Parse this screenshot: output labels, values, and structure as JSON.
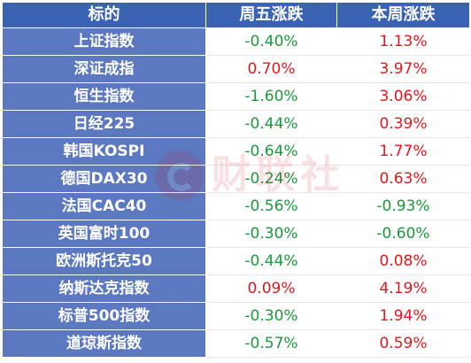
{
  "table": {
    "headers": [
      "标的",
      "周五涨跌",
      "本周涨跌"
    ],
    "rows": [
      {
        "name": "上证指数",
        "fri": "-0.40%",
        "week": "1.13%"
      },
      {
        "name": "深证成指",
        "fri": "0.70%",
        "week": "3.97%"
      },
      {
        "name": "恒生指数",
        "fri": "-1.60%",
        "week": "3.06%"
      },
      {
        "name": "日经225",
        "fri": "-0.44%",
        "week": "0.39%"
      },
      {
        "name": "韩国KOSPI",
        "fri": "-0.64%",
        "week": "1.77%"
      },
      {
        "name": "德国DAX30",
        "fri": "-0.24%",
        "week": "0.63%"
      },
      {
        "name": "法国CAC40",
        "fri": "-0.56%",
        "week": "-0.93%"
      },
      {
        "name": "英国富时100",
        "fri": "-0.30%",
        "week": "-0.60%"
      },
      {
        "name": "欧洲斯托克50",
        "fri": "-0.44%",
        "week": "0.08%"
      },
      {
        "name": "纳斯达克指数",
        "fri": "0.09%",
        "week": "4.19%"
      },
      {
        "name": "标普500指数",
        "fri": "-0.30%",
        "week": "1.94%"
      },
      {
        "name": "道琼斯指数",
        "fri": "-0.57%",
        "week": "0.59%"
      }
    ]
  },
  "colors": {
    "header_bg": "#3b63b4",
    "name_bg": "#5b78c0",
    "up": "#e8151b",
    "down": "#1a9a3a"
  },
  "watermark": {
    "text": "财联社",
    "icon": "cls-logo-icon"
  }
}
